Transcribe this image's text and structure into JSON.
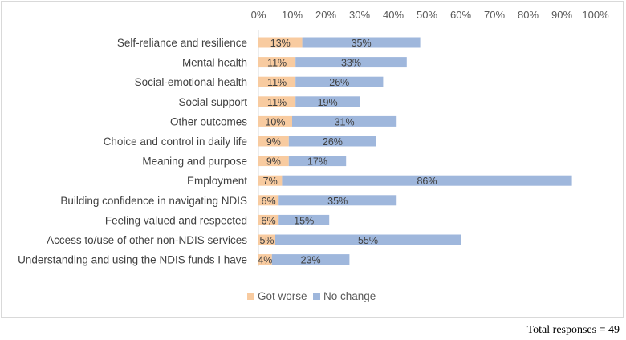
{
  "chart_data": {
    "type": "bar",
    "orientation": "horizontal",
    "stacked": true,
    "categories": [
      "Self-reliance and resilience",
      "Mental health",
      "Social-emotional health",
      "Social support",
      "Other outcomes",
      "Choice and control in daily life",
      "Meaning and purpose",
      "Employment",
      "Building confidence in navigating NDIS",
      "Feeling valued and respected",
      "Access to/use of other non-NDIS services",
      "Understanding and using the NDIS funds I have"
    ],
    "series": [
      {
        "name": "Got worse",
        "color": "#f8cba0",
        "values": [
          13,
          11,
          11,
          11,
          10,
          9,
          9,
          7,
          6,
          6,
          5,
          4
        ],
        "labels": [
          "13%",
          "11%",
          "11%",
          "11%",
          "10%",
          "9%",
          "9%",
          "7%",
          "6%",
          "6%",
          "5%",
          "4%"
        ]
      },
      {
        "name": "No change",
        "color": "#9fb7dc",
        "values": [
          35,
          33,
          26,
          19,
          31,
          26,
          17,
          86,
          35,
          15,
          55,
          23
        ],
        "labels": [
          "35%",
          "33%",
          "26%",
          "19%",
          "31%",
          "26%",
          "17%",
          "86%",
          "35%",
          "15%",
          "55%",
          "23%"
        ]
      }
    ],
    "x_ticks": [
      "0%",
      "10%",
      "20%",
      "30%",
      "40%",
      "50%",
      "60%",
      "70%",
      "80%",
      "90%",
      "100%"
    ],
    "xlim": [
      0,
      100
    ],
    "axis_position": "top",
    "legend": "bottom",
    "title": "",
    "xlabel": "",
    "ylabel": ""
  },
  "footnote": "Total responses = 49"
}
